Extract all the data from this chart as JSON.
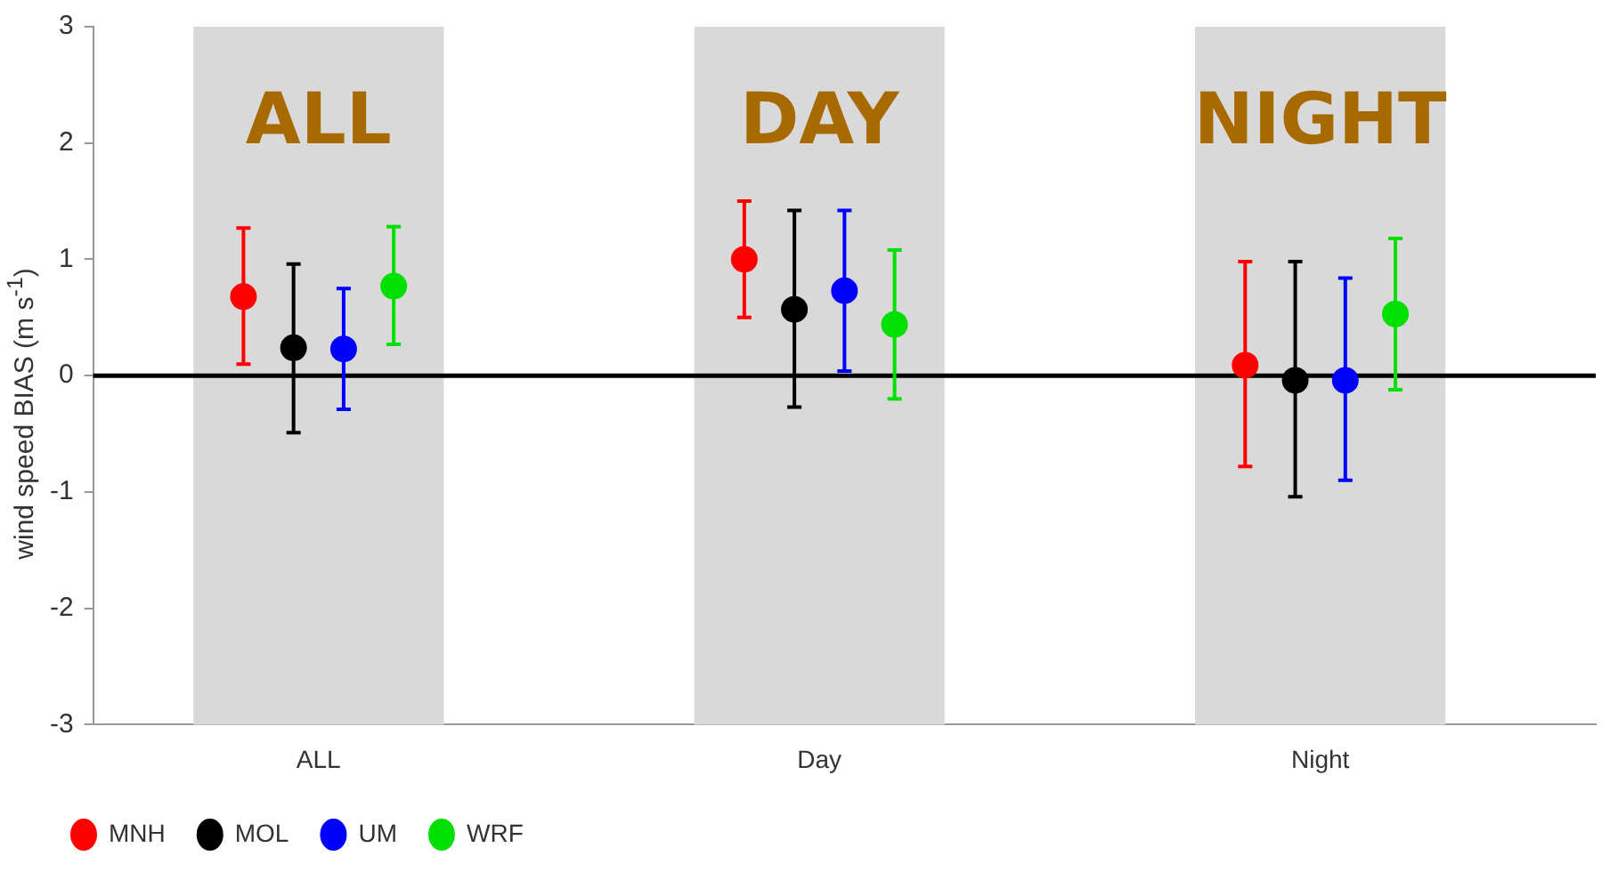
{
  "chart_data": {
    "type": "scatter",
    "ylabel": "wind speed BIAS (m s$^{-1}$)",
    "categories": [
      "ALL",
      "Day",
      "Night"
    ],
    "ylim": [
      -3,
      3
    ],
    "yticks": [
      -3,
      -2,
      -1,
      0,
      1,
      2,
      3
    ],
    "grid": false,
    "legend": "bottom left",
    "marker": "circle",
    "bands": [
      {
        "axis": "x",
        "from": "ALL",
        "to": "ALL",
        "label": "ALL",
        "color": "#d9d9d9"
      },
      {
        "axis": "x",
        "from": "Day",
        "to": "Day",
        "label": "DAY",
        "color": "#d9d9d9"
      },
      {
        "axis": "x",
        "from": "Night",
        "to": "Night",
        "label": "NIGHT",
        "color": "#d9d9d9"
      }
    ],
    "ref_lines": [
      {
        "axis": "y",
        "value": 0,
        "color": "#000000"
      }
    ],
    "series": [
      {
        "name": "MNH",
        "color": "#ff0000",
        "values": [
          0.68,
          1.0,
          0.09
        ],
        "errors": [
          [
            0.1,
            1.27
          ],
          [
            0.5,
            1.5
          ],
          [
            -0.78,
            0.98
          ]
        ]
      },
      {
        "name": "MOL",
        "color": "#000000",
        "values": [
          0.24,
          0.57,
          -0.04
        ],
        "errors": [
          [
            -0.49,
            0.96
          ],
          [
            -0.27,
            1.42
          ],
          [
            -1.04,
            0.98
          ]
        ]
      },
      {
        "name": "UM",
        "color": "#0000ff",
        "values": [
          0.23,
          0.73,
          -0.04
        ],
        "errors": [
          [
            -0.29,
            0.75
          ],
          [
            0.04,
            1.42
          ],
          [
            -0.9,
            0.84
          ]
        ]
      },
      {
        "name": "WRF",
        "color": "#00e000",
        "values": [
          0.77,
          0.44,
          0.53
        ],
        "errors": [
          [
            0.27,
            1.28
          ],
          [
            -0.2,
            1.08
          ],
          [
            -0.12,
            1.18
          ]
        ]
      }
    ]
  }
}
